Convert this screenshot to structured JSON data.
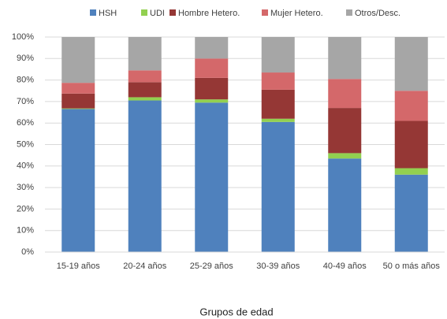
{
  "chart_data": {
    "type": "stacked_bar",
    "categories": [
      "15-19 años",
      "20-24 años",
      "25-29 años",
      "30-39 años",
      "40-49 años",
      "50 o más años"
    ],
    "series": [
      {
        "name": "HSH",
        "color": "#4f81bd",
        "values": [
          66.5,
          70.5,
          69.5,
          60.5,
          43.5,
          36
        ]
      },
      {
        "name": "UDI",
        "color": "#92d050",
        "values": [
          0.3,
          1.5,
          1.5,
          1.5,
          2.5,
          3
        ]
      },
      {
        "name": "Hombre Hetero.",
        "color": "#953735",
        "values": [
          6.9,
          7,
          10,
          13.5,
          21,
          22
        ]
      },
      {
        "name": "Mujer Hetero.",
        "color": "#d4686a",
        "values": [
          5,
          5.5,
          9,
          8,
          13.5,
          14
        ]
      },
      {
        "name": "Otros/Desc.",
        "color": "#a6a6a6",
        "values": [
          21.3,
          15.5,
          10,
          16.5,
          19.5,
          25
        ]
      }
    ],
    "x_label": "Grupos de edad",
    "ylim": [
      0,
      100
    ],
    "yticks": [
      {
        "value": 0,
        "label": "0%"
      },
      {
        "value": 10,
        "label": "10%"
      },
      {
        "value": 20,
        "label": "20%"
      },
      {
        "value": 30,
        "label": "30%"
      },
      {
        "value": 40,
        "label": "40%"
      },
      {
        "value": 50,
        "label": "50%"
      },
      {
        "value": 60,
        "label": "60%"
      },
      {
        "value": 70,
        "label": "70%"
      },
      {
        "value": 80,
        "label": "80%"
      },
      {
        "value": 90,
        "label": "90%"
      },
      {
        "value": 100,
        "label": "100%"
      }
    ],
    "grid": true,
    "legend": "top"
  }
}
